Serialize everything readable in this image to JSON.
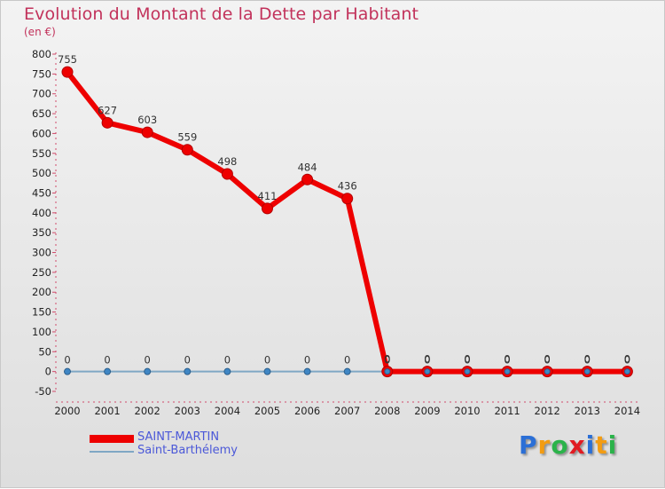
{
  "title": "Evolution du Montant de la Dette par Habitant",
  "subtitle": "(en €)",
  "brand": {
    "text": "Proxiti",
    "letters": [
      "P",
      "r",
      "o",
      "x",
      "i",
      "t",
      "i"
    ],
    "colors": [
      "#2b6fd6",
      "#f39c12",
      "#2bb34a",
      "#e11b22",
      "#2b6fd6",
      "#f39c12",
      "#2bb34a"
    ]
  },
  "chart_data": {
    "type": "line",
    "title": "Evolution du Montant de la Dette par Habitant",
    "ylabel": "(en €)",
    "xlabel": "",
    "ylim": [
      -50,
      800
    ],
    "yticks": [
      -50,
      0,
      50,
      100,
      150,
      200,
      250,
      300,
      350,
      400,
      450,
      500,
      550,
      600,
      650,
      700,
      750,
      800
    ],
    "categories": [
      "2000",
      "2001",
      "2002",
      "2003",
      "2004",
      "2005",
      "2006",
      "2007",
      "2008",
      "2009",
      "2010",
      "2011",
      "2012",
      "2013",
      "2014"
    ],
    "series": [
      {
        "name": "SAINT-MARTIN",
        "color": "#ee0000",
        "values": [
          755,
          627,
          603,
          559,
          498,
          411,
          484,
          436,
          0,
          0,
          0,
          0,
          0,
          0,
          0
        ]
      },
      {
        "name": "Saint-Barthélemy",
        "color": "#7fa7c4",
        "values": [
          0,
          0,
          0,
          0,
          0,
          0,
          0,
          0,
          0,
          0,
          0,
          0,
          0,
          0,
          0
        ]
      }
    ],
    "grid": false,
    "legend": "bottom-left"
  }
}
